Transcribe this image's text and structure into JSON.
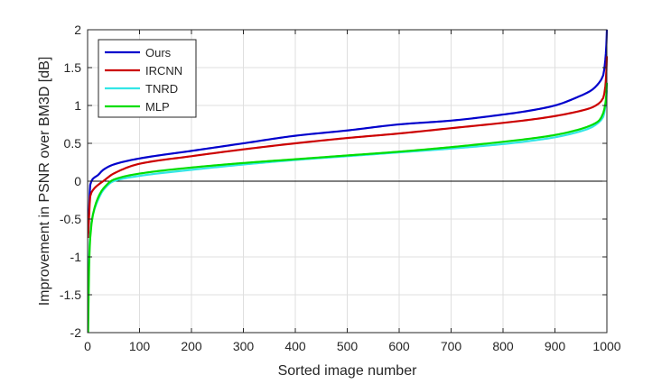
{
  "chart_data": {
    "type": "line",
    "xlabel": "Sorted image number",
    "ylabel": "Improvement in PSNR over BM3D [dB]",
    "xlim": [
      0,
      1000
    ],
    "ylim": [
      -2,
      2
    ],
    "xticks": [
      0,
      100,
      200,
      300,
      400,
      500,
      600,
      700,
      800,
      900,
      1000
    ],
    "yticks": [
      -2,
      -1.5,
      -1,
      -0.5,
      0,
      0.5,
      1,
      1.5,
      2
    ],
    "xtick_labels": [
      "0",
      "100",
      "200",
      "300",
      "400",
      "500",
      "600",
      "700",
      "800",
      "900",
      "1000"
    ],
    "ytick_labels": [
      "-2",
      "-1.5",
      "-1",
      "-0.5",
      "0",
      "0.5",
      "1",
      "1.5",
      "2"
    ],
    "grid": true,
    "zero_line": true,
    "legend_position": "top-left",
    "series": [
      {
        "name": "Ours",
        "color": "#0000cc",
        "x": [
          1,
          3,
          5,
          10,
          20,
          30,
          50,
          100,
          200,
          300,
          400,
          500,
          600,
          700,
          800,
          850,
          900,
          950,
          970,
          985,
          993,
          997,
          999,
          1000
        ],
        "y": [
          -0.7,
          -0.35,
          -0.05,
          0.03,
          0.08,
          0.15,
          0.22,
          0.3,
          0.4,
          0.5,
          0.6,
          0.67,
          0.75,
          0.8,
          0.88,
          0.93,
          1.0,
          1.13,
          1.2,
          1.3,
          1.4,
          1.6,
          1.8,
          2.0
        ]
      },
      {
        "name": "IRCNN",
        "color": "#cc0000",
        "x": [
          1,
          3,
          5,
          10,
          20,
          30,
          50,
          100,
          200,
          300,
          400,
          500,
          600,
          700,
          800,
          850,
          900,
          950,
          970,
          985,
          993,
          997,
          999,
          1000
        ],
        "y": [
          -0.75,
          -0.45,
          -0.2,
          -0.12,
          -0.05,
          0.0,
          0.1,
          0.23,
          0.33,
          0.42,
          0.5,
          0.57,
          0.63,
          0.7,
          0.77,
          0.81,
          0.86,
          0.93,
          0.97,
          1.03,
          1.1,
          1.25,
          1.45,
          1.65
        ]
      },
      {
        "name": "TNRD",
        "color": "#33e6e6",
        "x": [
          1,
          3,
          5,
          10,
          20,
          30,
          50,
          100,
          200,
          300,
          400,
          500,
          600,
          700,
          800,
          850,
          900,
          950,
          970,
          985,
          993,
          997,
          999,
          1000
        ],
        "y": [
          -1.6,
          -1.0,
          -0.7,
          -0.45,
          -0.25,
          -0.12,
          0.0,
          0.07,
          0.15,
          0.22,
          0.28,
          0.33,
          0.38,
          0.43,
          0.49,
          0.53,
          0.58,
          0.66,
          0.71,
          0.78,
          0.85,
          0.98,
          1.1,
          1.2
        ]
      },
      {
        "name": "MLP",
        "color": "#00dd00",
        "x": [
          1,
          3,
          5,
          10,
          20,
          30,
          50,
          100,
          200,
          300,
          400,
          500,
          600,
          700,
          800,
          850,
          900,
          950,
          970,
          985,
          993,
          997,
          999,
          1000
        ],
        "y": [
          -2.0,
          -1.1,
          -0.75,
          -0.45,
          -0.22,
          -0.1,
          0.02,
          0.1,
          0.18,
          0.24,
          0.29,
          0.34,
          0.39,
          0.45,
          0.52,
          0.56,
          0.61,
          0.69,
          0.74,
          0.8,
          0.9,
          1.02,
          1.15,
          1.3
        ]
      }
    ]
  }
}
